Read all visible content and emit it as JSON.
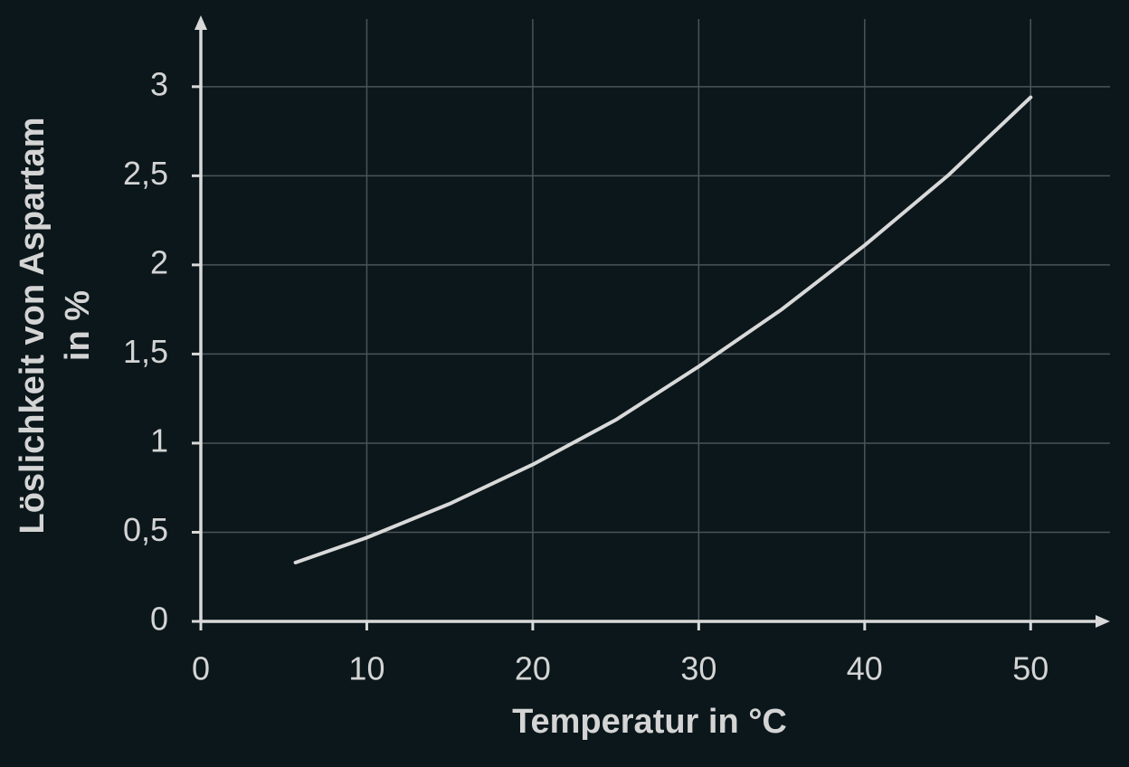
{
  "chart_data": {
    "type": "line",
    "xlabel": "Temperatur in °C",
    "ylabel_lines": [
      "Löslichkeit von Aspartam",
      "in %"
    ],
    "x": [
      5.7,
      10,
      15,
      20,
      25,
      30,
      35,
      40,
      45,
      50
    ],
    "values": [
      0.33,
      0.47,
      0.66,
      0.88,
      1.13,
      1.43,
      1.75,
      2.11,
      2.5,
      2.94
    ],
    "color": "#d9d9d9",
    "xlim": [
      0,
      55
    ],
    "ylim": [
      0,
      3.4
    ],
    "xticks": [
      0,
      10,
      20,
      30,
      40,
      50
    ],
    "yticks": [
      0,
      {
        "value": 0.5,
        "label": "0,5"
      },
      1,
      {
        "value": 1.5,
        "label": "1,5"
      },
      2,
      {
        "value": 2.5,
        "label": "2,5"
      },
      3
    ],
    "grid": true
  }
}
